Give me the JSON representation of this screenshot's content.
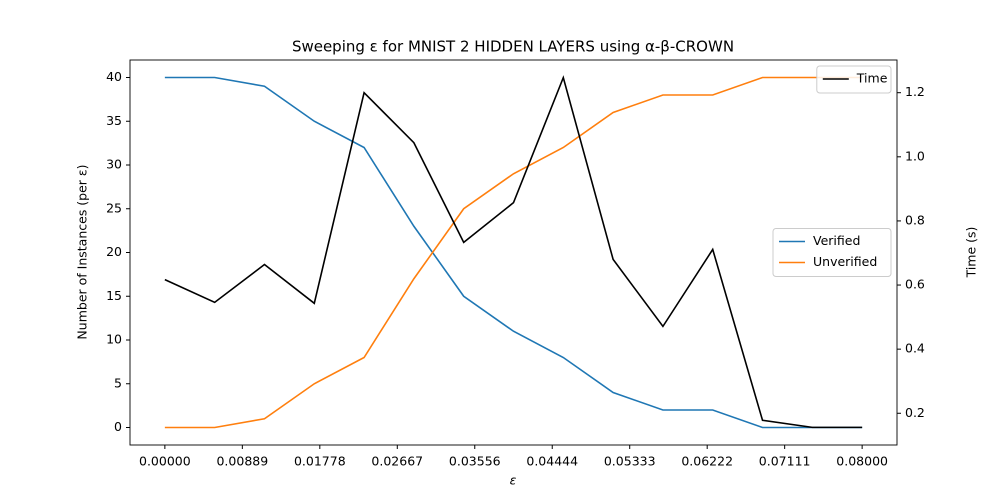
{
  "chart_data": {
    "type": "line",
    "title": "Sweeping ε for MNIST 2 HIDDEN LAYERS using α-β-CROWN",
    "xlabel": "ε",
    "ylabel": "Number of Instances (per ε)",
    "y2label": "Time (s)",
    "x": [
      0,
      0.005714,
      0.011429,
      0.017143,
      0.022857,
      0.028571,
      0.034286,
      0.04,
      0.045714,
      0.051429,
      0.057143,
      0.062857,
      0.068571,
      0.074286,
      0.08
    ],
    "series": [
      {
        "name": "Verified",
        "color": "#1f77b4",
        "values": [
          40,
          40,
          39,
          35,
          32,
          23,
          15,
          11,
          8,
          4,
          2,
          2,
          0,
          0,
          0
        ]
      },
      {
        "name": "Unverified",
        "color": "#ff7f0e",
        "values": [
          0,
          0,
          1,
          5,
          8,
          17,
          25,
          29,
          32,
          36,
          38,
          38,
          40,
          40,
          40
        ]
      },
      {
        "name": "Time",
        "color": "#000000",
        "axis": "y2",
        "values": [
          0.617,
          0.546,
          0.664,
          0.543,
          1.2,
          1.044,
          0.733,
          0.857,
          1.247,
          0.68,
          0.471,
          0.711,
          0.178,
          0.156,
          0.156
        ]
      }
    ],
    "xlim": [
      -0.004,
      0.084
    ],
    "xticks": [
      {
        "value": 0,
        "label": "0.00000"
      },
      {
        "value": 0.0088889,
        "label": "0.00889"
      },
      {
        "value": 0.0177778,
        "label": "0.01778"
      },
      {
        "value": 0.0266667,
        "label": "0.02667"
      },
      {
        "value": 0.0355556,
        "label": "0.03556"
      },
      {
        "value": 0.0444444,
        "label": "0.04444"
      },
      {
        "value": 0.0533333,
        "label": "0.05333"
      },
      {
        "value": 0.0622222,
        "label": "0.06222"
      },
      {
        "value": 0.0711111,
        "label": "0.07111"
      },
      {
        "value": 0.08,
        "label": "0.08000"
      }
    ],
    "ylim": [
      -2,
      42
    ],
    "yticks": [
      0,
      5,
      10,
      15,
      20,
      25,
      30,
      35,
      40
    ],
    "y2lim": [
      0.101,
      1.302
    ],
    "y2ticks": [
      0.2,
      0.4,
      0.6,
      0.8,
      {
        "value": 1,
        "label": "1.0"
      },
      1.2
    ],
    "legend_loc": "center right",
    "legend2_loc": "upper right"
  }
}
